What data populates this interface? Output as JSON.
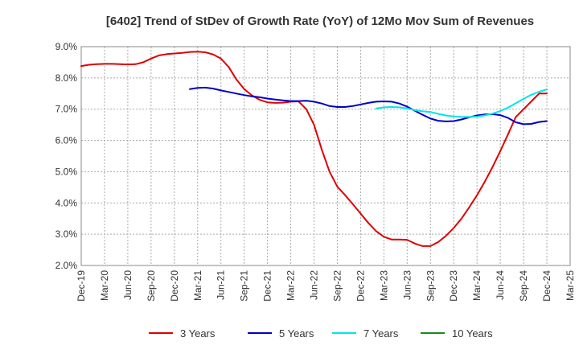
{
  "chart_data": {
    "type": "line",
    "title": "[6402]  Trend of StDev of Growth Rate (YoY) of 12Mo Mov Sum of Revenues",
    "xlabel": "",
    "ylabel": "",
    "ylim": [
      2.0,
      9.0
    ],
    "y_ticks": [
      2.0,
      3.0,
      4.0,
      5.0,
      6.0,
      7.0,
      8.0,
      9.0
    ],
    "y_tick_labels": [
      "2.0%",
      "3.0%",
      "4.0%",
      "5.0%",
      "6.0%",
      "7.0%",
      "8.0%",
      "9.0%"
    ],
    "x_tick_labels": [
      "Dec-19",
      "Mar-20",
      "Jun-20",
      "Sep-20",
      "Dec-20",
      "Mar-21",
      "Jun-21",
      "Sep-21",
      "Dec-21",
      "Mar-22",
      "Jun-22",
      "Sep-22",
      "Dec-22",
      "Mar-23",
      "Jun-23",
      "Sep-23",
      "Dec-23",
      "Mar-24",
      "Jun-24",
      "Sep-24",
      "Dec-24",
      "Mar-25"
    ],
    "x_unit": "months since Dec-19",
    "grid": true,
    "legend_position": "bottom",
    "series": [
      {
        "name": "3 Years",
        "color": "#e00000",
        "x": [
          0,
          1,
          2,
          3,
          4,
          5,
          6,
          7,
          8,
          9,
          10,
          11,
          12,
          13,
          14,
          15,
          16,
          17,
          18,
          19,
          20,
          21,
          22,
          23,
          24,
          25,
          26,
          27,
          28,
          29,
          30,
          31,
          32,
          33,
          34,
          35,
          36,
          37,
          38,
          39,
          40,
          41,
          42,
          43,
          44,
          45,
          46,
          47,
          48,
          49,
          50,
          51,
          52,
          53,
          54,
          55,
          56,
          57,
          58,
          59,
          60
        ],
        "values": [
          8.38,
          8.42,
          8.44,
          8.45,
          8.45,
          8.44,
          8.43,
          8.44,
          8.5,
          8.62,
          8.72,
          8.76,
          8.78,
          8.8,
          8.83,
          8.84,
          8.82,
          8.75,
          8.62,
          8.35,
          7.95,
          7.64,
          7.44,
          7.3,
          7.22,
          7.2,
          7.21,
          7.24,
          7.25,
          7.0,
          6.5,
          5.7,
          5.0,
          4.52,
          4.25,
          3.96,
          3.66,
          3.36,
          3.1,
          2.92,
          2.83,
          2.83,
          2.82,
          2.7,
          2.62,
          2.62,
          2.75,
          2.95,
          3.2,
          3.5,
          3.86,
          4.25,
          4.68,
          5.15,
          5.66,
          6.2,
          6.75,
          7.0,
          7.25,
          7.5,
          7.5
        ]
      },
      {
        "name": "5 Years",
        "color": "#0000c8",
        "x": [
          14,
          15,
          16,
          17,
          18,
          19,
          20,
          21,
          22,
          23,
          24,
          25,
          26,
          27,
          28,
          29,
          30,
          31,
          32,
          33,
          34,
          35,
          36,
          37,
          38,
          39,
          40,
          41,
          42,
          43,
          44,
          45,
          46,
          47,
          48,
          49,
          50,
          51,
          52,
          53,
          54,
          55,
          56,
          57,
          58,
          59,
          60
        ],
        "values": [
          7.64,
          7.68,
          7.69,
          7.66,
          7.6,
          7.55,
          7.5,
          7.45,
          7.41,
          7.38,
          7.34,
          7.31,
          7.28,
          7.26,
          7.26,
          7.27,
          7.24,
          7.18,
          7.1,
          7.07,
          7.07,
          7.1,
          7.15,
          7.2,
          7.24,
          7.25,
          7.24,
          7.18,
          7.08,
          6.95,
          6.82,
          6.7,
          6.63,
          6.61,
          6.62,
          6.67,
          6.74,
          6.8,
          6.83,
          6.84,
          6.81,
          6.72,
          6.58,
          6.52,
          6.53,
          6.59,
          6.62
        ]
      },
      {
        "name": "7 Years",
        "color": "#00e5e5",
        "x": [
          38,
          39,
          40,
          41,
          42,
          43,
          44,
          45,
          46,
          47,
          48,
          49,
          50,
          51,
          52,
          53,
          54,
          55,
          56,
          57,
          58,
          59,
          60
        ],
        "values": [
          7.02,
          7.06,
          7.07,
          7.06,
          7.02,
          6.97,
          6.93,
          6.91,
          6.85,
          6.8,
          6.77,
          6.75,
          6.75,
          6.76,
          6.8,
          6.86,
          6.94,
          7.05,
          7.19,
          7.33,
          7.46,
          7.56,
          7.63
        ]
      },
      {
        "name": "10 Years",
        "color": "#1a8a1a",
        "x": [],
        "values": []
      }
    ]
  }
}
